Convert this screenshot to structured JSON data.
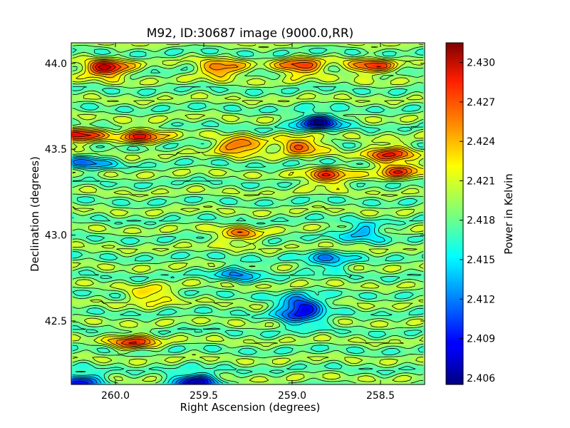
{
  "chart_data": {
    "type": "heatmap",
    "title": "M92, ID:30687 image (9000.0,RR)",
    "xlabel": "Right Ascension (degrees)",
    "ylabel": "Declination (degrees)",
    "xlim": [
      260.25,
      258.25
    ],
    "ylim": [
      42.13,
      44.12
    ],
    "x_ticks": [
      260.0,
      259.5,
      259.0,
      258.5
    ],
    "x_tick_labels": [
      "260.0",
      "259.5",
      "259.0",
      "258.5"
    ],
    "y_ticks": [
      42.5,
      43.0,
      43.5,
      44.0
    ],
    "y_tick_labels": [
      "42.5",
      "43.0",
      "43.5",
      "44.0"
    ],
    "colormap": "jet",
    "contours": true,
    "colorbar": {
      "label": "Power in Kelvin",
      "range": [
        2.4055,
        2.4315
      ],
      "ticks": [
        2.406,
        2.409,
        2.412,
        2.415,
        2.418,
        2.421,
        2.424,
        2.427,
        2.43
      ],
      "tick_labels": [
        "2.406",
        "2.409",
        "2.412",
        "2.415",
        "2.418",
        "2.421",
        "2.424",
        "2.427",
        "2.430"
      ]
    },
    "features": [
      {
        "ra": 260.05,
        "dec": 43.97,
        "value": 2.4305
      },
      {
        "ra": 259.4,
        "dec": 43.97,
        "value": 2.427
      },
      {
        "ra": 258.95,
        "dec": 43.98,
        "value": 2.428
      },
      {
        "ra": 258.55,
        "dec": 43.98,
        "value": 2.427
      },
      {
        "ra": 258.85,
        "dec": 43.66,
        "value": 2.4075
      },
      {
        "ra": 260.2,
        "dec": 43.58,
        "value": 2.428
      },
      {
        "ra": 259.85,
        "dec": 43.58,
        "value": 2.427
      },
      {
        "ra": 259.3,
        "dec": 43.52,
        "value": 2.4275
      },
      {
        "ra": 258.95,
        "dec": 43.52,
        "value": 2.427
      },
      {
        "ra": 258.45,
        "dec": 43.48,
        "value": 2.4275
      },
      {
        "ra": 258.8,
        "dec": 43.34,
        "value": 2.427
      },
      {
        "ra": 258.4,
        "dec": 43.38,
        "value": 2.427
      },
      {
        "ra": 260.15,
        "dec": 43.42,
        "value": 2.4125
      },
      {
        "ra": 258.6,
        "dec": 43.02,
        "value": 2.4125
      },
      {
        "ra": 258.8,
        "dec": 42.85,
        "value": 2.412
      },
      {
        "ra": 259.3,
        "dec": 42.78,
        "value": 2.413
      },
      {
        "ra": 258.95,
        "dec": 42.6,
        "value": 2.4085
      },
      {
        "ra": 258.95,
        "dec": 42.52,
        "value": 2.41
      },
      {
        "ra": 259.55,
        "dec": 42.15,
        "value": 2.407
      },
      {
        "ra": 260.2,
        "dec": 42.15,
        "value": 2.409
      },
      {
        "ra": 259.9,
        "dec": 42.38,
        "value": 2.4265
      },
      {
        "ra": 259.3,
        "dec": 43.0,
        "value": 2.425
      },
      {
        "ra": 259.8,
        "dec": 42.65,
        "value": 2.424
      }
    ]
  }
}
